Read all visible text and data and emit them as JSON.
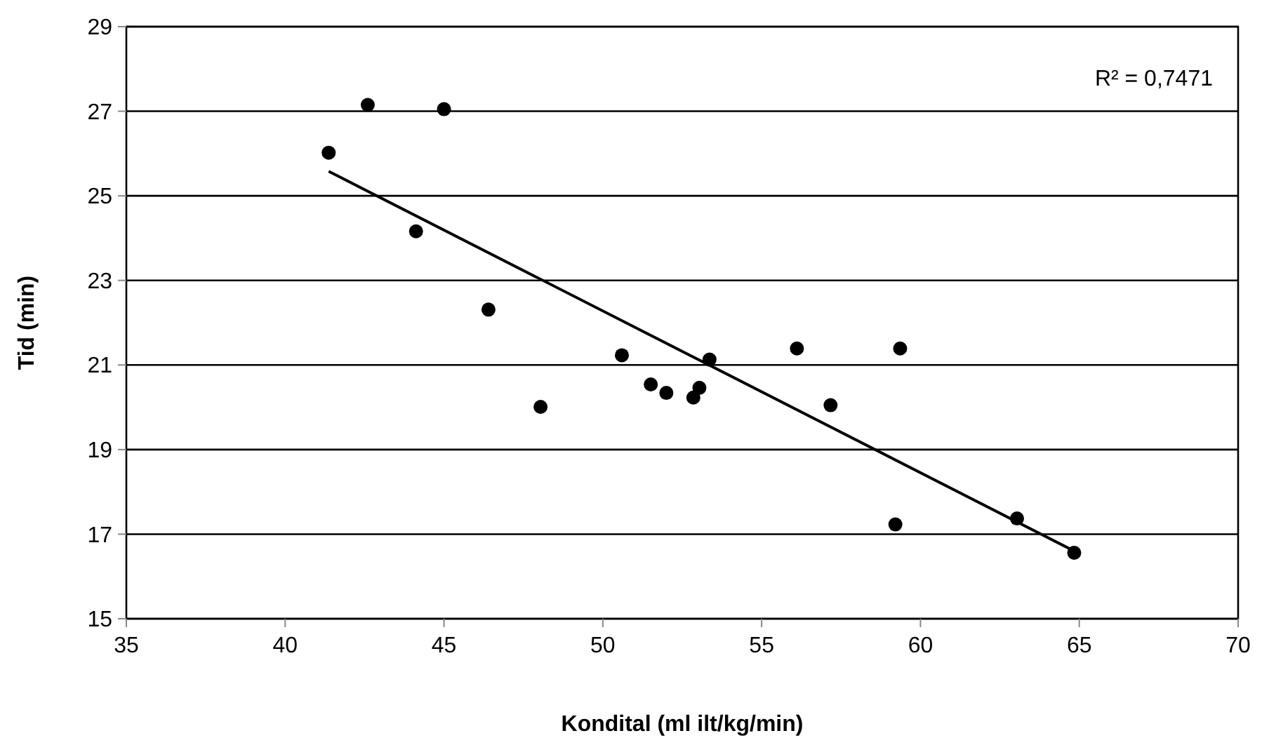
{
  "chart_data": {
    "type": "scatter",
    "xlabel": "Kondital (ml ilt/kg/min)",
    "ylabel": "Tid (min)",
    "xlim": [
      35,
      70
    ],
    "xticks": [
      35,
      40,
      45,
      50,
      55,
      60,
      65,
      70
    ],
    "ylim": [
      15,
      29
    ],
    "yticks": [
      15,
      17,
      19,
      21,
      23,
      25,
      27,
      29
    ],
    "grid": "y",
    "marker": "circle",
    "annotations": [
      "R² = 0,7471"
    ],
    "series": [
      {
        "color": "#000000",
        "x": [
          41.37,
          42.6,
          45.0,
          44.12,
          46.4,
          48.04,
          50.6,
          51.51,
          52.0,
          52.85,
          53.04,
          53.36,
          56.11,
          57.17,
          59.36,
          59.21,
          63.04,
          64.84
        ],
        "values": [
          26.02,
          27.15,
          27.05,
          24.16,
          22.31,
          20.01,
          21.23,
          20.54,
          20.34,
          20.23,
          20.46,
          21.13,
          21.39,
          20.05,
          21.39,
          17.23,
          17.37,
          16.56
        ]
      },
      {
        "type": "line",
        "color": "#000000",
        "marker": "none",
        "x": [
          41.37,
          64.84
        ],
        "values": [
          25.58,
          16.6
        ]
      }
    ]
  }
}
